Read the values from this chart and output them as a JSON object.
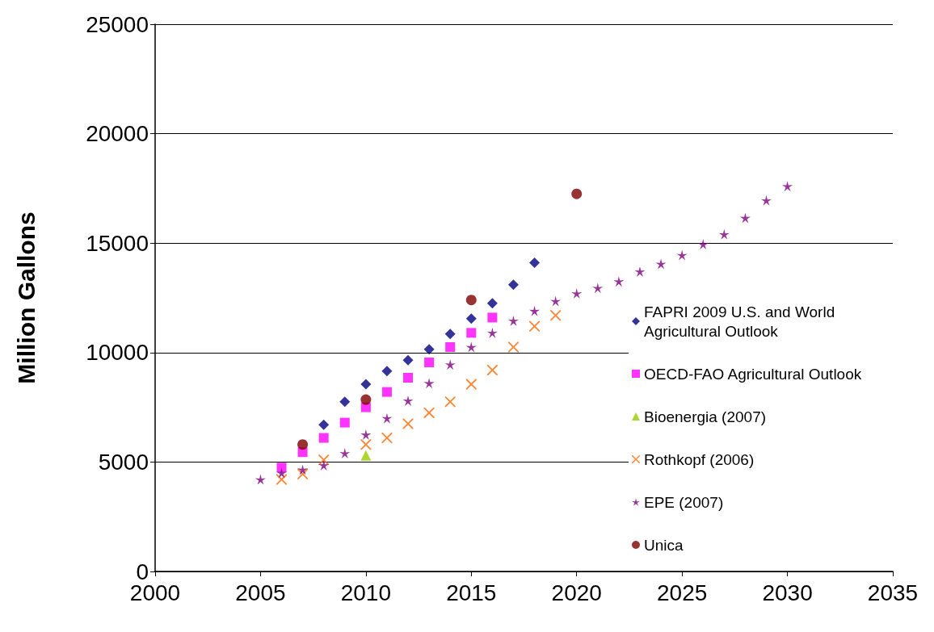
{
  "chart_data": {
    "type": "scatter",
    "ylabel": "Million Gallons",
    "xlim": [
      2000,
      2035
    ],
    "xticks": [
      2000,
      2005,
      2010,
      2015,
      2020,
      2025,
      2030,
      2035
    ],
    "ylim": [
      0,
      25000
    ],
    "yticks": [
      0,
      5000,
      10000,
      15000,
      20000,
      25000
    ],
    "grid": "y",
    "legend": "right",
    "series": [
      {
        "name": "FAPRI 2009 U.S. and World Agricultural Outlook",
        "color": "#000080",
        "marker": "diamond",
        "x": [
          2008,
          2009,
          2010,
          2011,
          2012,
          2013,
          2014,
          2015,
          2016,
          2017,
          2018
        ],
        "values": [
          6700,
          7750,
          8550,
          9150,
          9650,
          10150,
          10850,
          11550,
          12250,
          13100,
          14100
        ]
      },
      {
        "name": "OECD-FAO Agricultural Outlook",
        "color": "#ff00ff",
        "marker": "square",
        "x": [
          2006,
          2007,
          2008,
          2009,
          2010,
          2011,
          2012,
          2013,
          2014,
          2015,
          2016
        ],
        "values": [
          4750,
          5450,
          6100,
          6800,
          7500,
          8200,
          8850,
          9550,
          10250,
          10900,
          11600
        ]
      },
      {
        "name": "Bioenergia (2007)",
        "color": "#99cc00",
        "marker": "triangle",
        "x": [
          2010
        ],
        "values": [
          5300
        ]
      },
      {
        "name": "Rothkopf (2006)",
        "color": "#ff6600",
        "marker": "cross",
        "x": [
          2006,
          2007,
          2008,
          2010,
          2011,
          2012,
          2013,
          2014,
          2015,
          2016,
          2017,
          2018,
          2019
        ],
        "values": [
          4200,
          4450,
          5100,
          5800,
          6100,
          6750,
          7250,
          7750,
          8550,
          9200,
          10250,
          11200,
          11700
        ]
      },
      {
        "name": "EPE (2007)",
        "color": "#800080",
        "marker": "star",
        "x": [
          2005,
          2006,
          2007,
          2008,
          2009,
          2010,
          2011,
          2012,
          2013,
          2014,
          2015,
          2016,
          2017,
          2018,
          2019,
          2020,
          2021,
          2022,
          2023,
          2024,
          2025,
          2026,
          2027,
          2028,
          2029,
          2030
        ],
        "values": [
          4200,
          4500,
          4650,
          4850,
          5400,
          6250,
          7000,
          7800,
          8600,
          9450,
          10250,
          10900,
          11450,
          11900,
          12350,
          12700,
          12950,
          13250,
          13700,
          14050,
          14450,
          14950,
          15400,
          16150,
          16950,
          17600
        ]
      },
      {
        "name": "Unica",
        "color": "#800000",
        "marker": "circle",
        "x": [
          2007,
          2010,
          2015,
          2020
        ],
        "values": [
          5800,
          7850,
          12400,
          17250
        ]
      }
    ]
  }
}
